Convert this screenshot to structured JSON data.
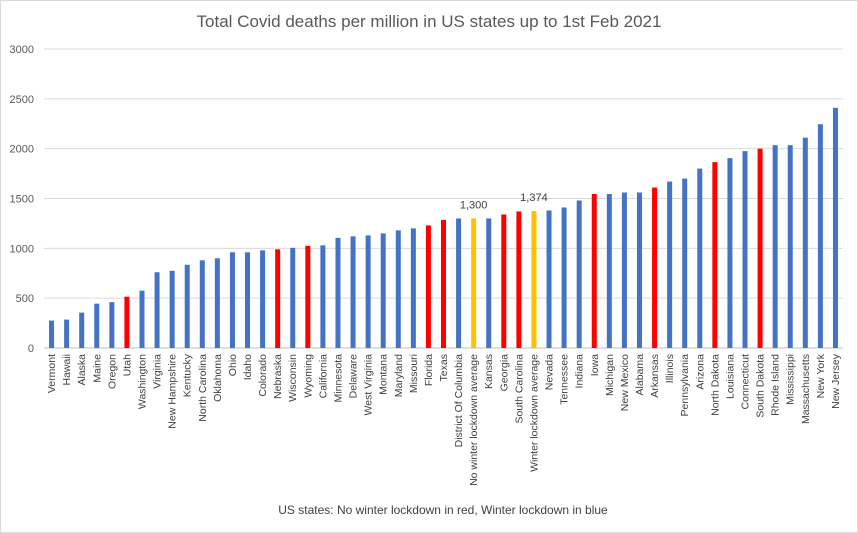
{
  "chart_data": {
    "type": "bar",
    "title": "Total Covid deaths per million in US states up to 1st Feb 2021",
    "xlabel": "US states: No winter  lockdown in red, Winter lockdown in blue",
    "ylabel": "",
    "ylim": [
      0,
      3000
    ],
    "yticks": [
      0,
      500,
      1000,
      1500,
      2000,
      2500,
      3000
    ],
    "grid": true,
    "legend": "none",
    "colors": {
      "winter_lockdown": "#4472c4",
      "no_winter_lockdown": "#ff0000",
      "average": "#ffc000",
      "grid": "#d9d9d9",
      "axis": "#bfbfbf"
    },
    "categories": [
      "Vermont",
      "Hawaii",
      "Alaska",
      "Maine",
      "Oregon",
      "Utah",
      "Washington",
      "Virginia",
      "New Hampshire",
      "Kentucky",
      "North Carolina",
      "Oklahoma",
      "Ohio",
      "Idaho",
      "Colorado",
      "Nebraska",
      "Wisconsin",
      "Wyoming",
      "California",
      "Minnesota",
      "Delaware",
      "West Virginia",
      "Montana",
      "Maryland",
      "Missouri",
      "Florida",
      "Texas",
      "District Of Columbia",
      "No winter lockdown average",
      "Kansas",
      "Georgia",
      "South Carolina",
      "Winter lockdown average",
      "Nevada",
      "Tennessee",
      "Indiana",
      "Iowa",
      "Michigan",
      "New Mexico",
      "Alabama",
      "Arkansas",
      "Illinois",
      "Pennsylvania",
      "Arizona",
      "North Dakota",
      "Louisiana",
      "Connecticut",
      "South Dakota",
      "Rhode Island",
      "Mississippi",
      "Massachusetts",
      "New York",
      "New Jersey"
    ],
    "values": [
      275,
      285,
      355,
      445,
      460,
      515,
      575,
      760,
      775,
      835,
      880,
      900,
      960,
      960,
      980,
      990,
      1005,
      1025,
      1030,
      1105,
      1120,
      1130,
      1150,
      1180,
      1200,
      1230,
      1285,
      1300,
      1300,
      1300,
      1340,
      1370,
      1374,
      1380,
      1410,
      1480,
      1545,
      1545,
      1560,
      1560,
      1610,
      1670,
      1700,
      1800,
      1865,
      1905,
      1975,
      2000,
      2035,
      2035,
      2110,
      2245,
      2410
    ],
    "bar_groups": [
      "blue",
      "blue",
      "blue",
      "blue",
      "blue",
      "red",
      "blue",
      "blue",
      "blue",
      "blue",
      "blue",
      "blue",
      "blue",
      "blue",
      "blue",
      "red",
      "blue",
      "red",
      "blue",
      "blue",
      "blue",
      "blue",
      "blue",
      "blue",
      "blue",
      "red",
      "red",
      "blue",
      "yellow",
      "blue",
      "red",
      "red",
      "yellow",
      "blue",
      "blue",
      "blue",
      "red",
      "blue",
      "blue",
      "blue",
      "red",
      "blue",
      "blue",
      "blue",
      "red",
      "blue",
      "blue",
      "red",
      "blue",
      "blue",
      "blue",
      "blue",
      "blue"
    ],
    "data_labels": [
      {
        "category": "No winter lockdown average",
        "text": "1,300"
      },
      {
        "category": "Winter lockdown average",
        "text": "1,374"
      }
    ]
  }
}
